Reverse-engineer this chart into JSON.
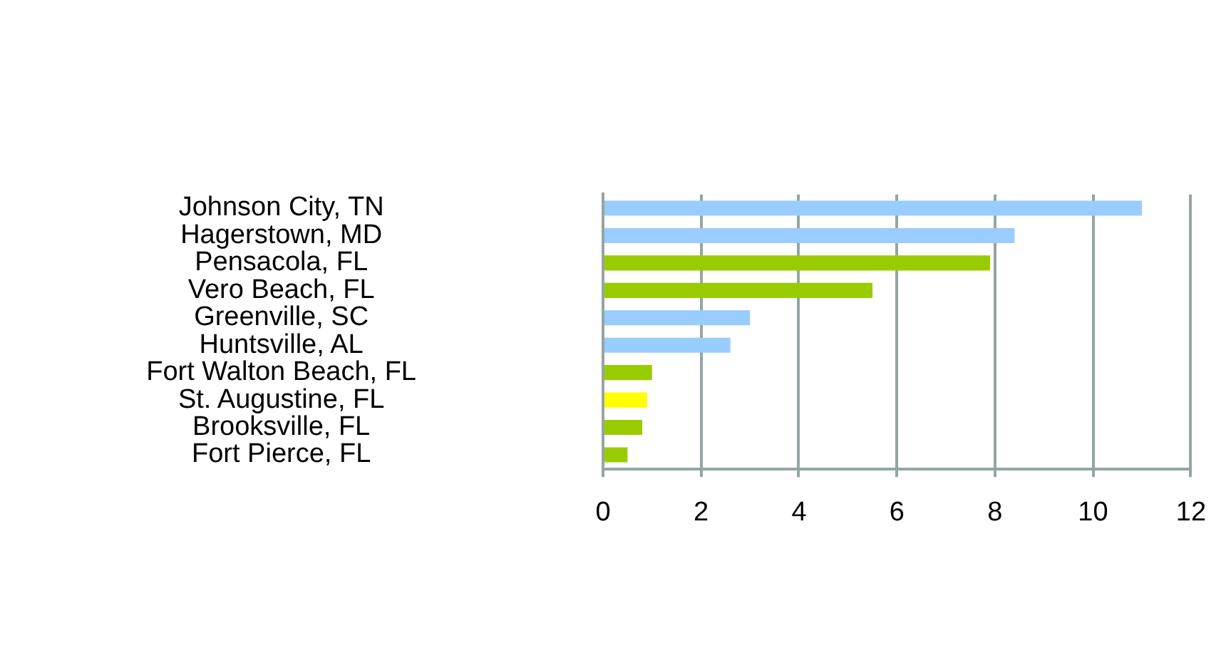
{
  "chart_data": {
    "type": "bar",
    "orientation": "horizontal",
    "categories": [
      "Johnson City, TN",
      "Hagerstown, MD",
      "Pensacola, FL",
      "Vero Beach, FL",
      "Greenville, SC",
      "Huntsville, AL",
      "Fort Walton Beach, FL",
      "St. Augustine, FL",
      "Brooksville, FL",
      "Fort Pierce, FL"
    ],
    "values": [
      11.0,
      8.4,
      7.9,
      5.5,
      3.0,
      2.6,
      1.0,
      0.9,
      0.8,
      0.5
    ],
    "colors": [
      "#99ccff",
      "#99ccff",
      "#99cc00",
      "#99cc00",
      "#99ccff",
      "#99ccff",
      "#99cc00",
      "#ffff00",
      "#99cc00",
      "#99cc00"
    ],
    "xlim": [
      0,
      12
    ],
    "xticks": [
      0,
      2,
      4,
      6,
      8,
      10,
      12
    ],
    "grid": "x",
    "legend": false
  }
}
